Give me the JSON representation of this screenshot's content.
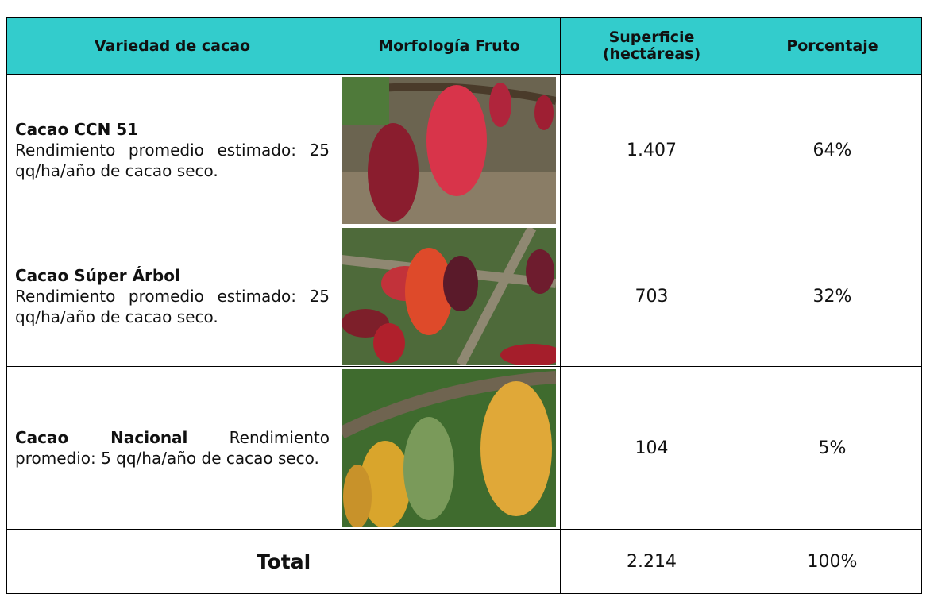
{
  "table": {
    "header": [
      "Variedad de cacao",
      "Morfología Fruto",
      "Superficie (hectáreas)",
      "Porcentaje"
    ],
    "rows": [
      {
        "name": "Cacao CCN 51",
        "description": "Rendimiento promedio estimado: 25 qq/ha/año de cacao seco.",
        "area": "1.407",
        "percentage": "64%"
      },
      {
        "name": "Cacao Súper Árbol",
        "description": "Rendimiento promedio estimado: 25 qq/ha/año de cacao seco.",
        "area": "703",
        "percentage": "32%"
      },
      {
        "name": "Cacao Nacional",
        "description": "Rendimiento promedio: 5 qq/ha/año de cacao seco.",
        "area": "104",
        "percentage": "5%"
      }
    ],
    "total": {
      "label": "Total",
      "area": "2.214",
      "percentage": "100%"
    }
  }
}
